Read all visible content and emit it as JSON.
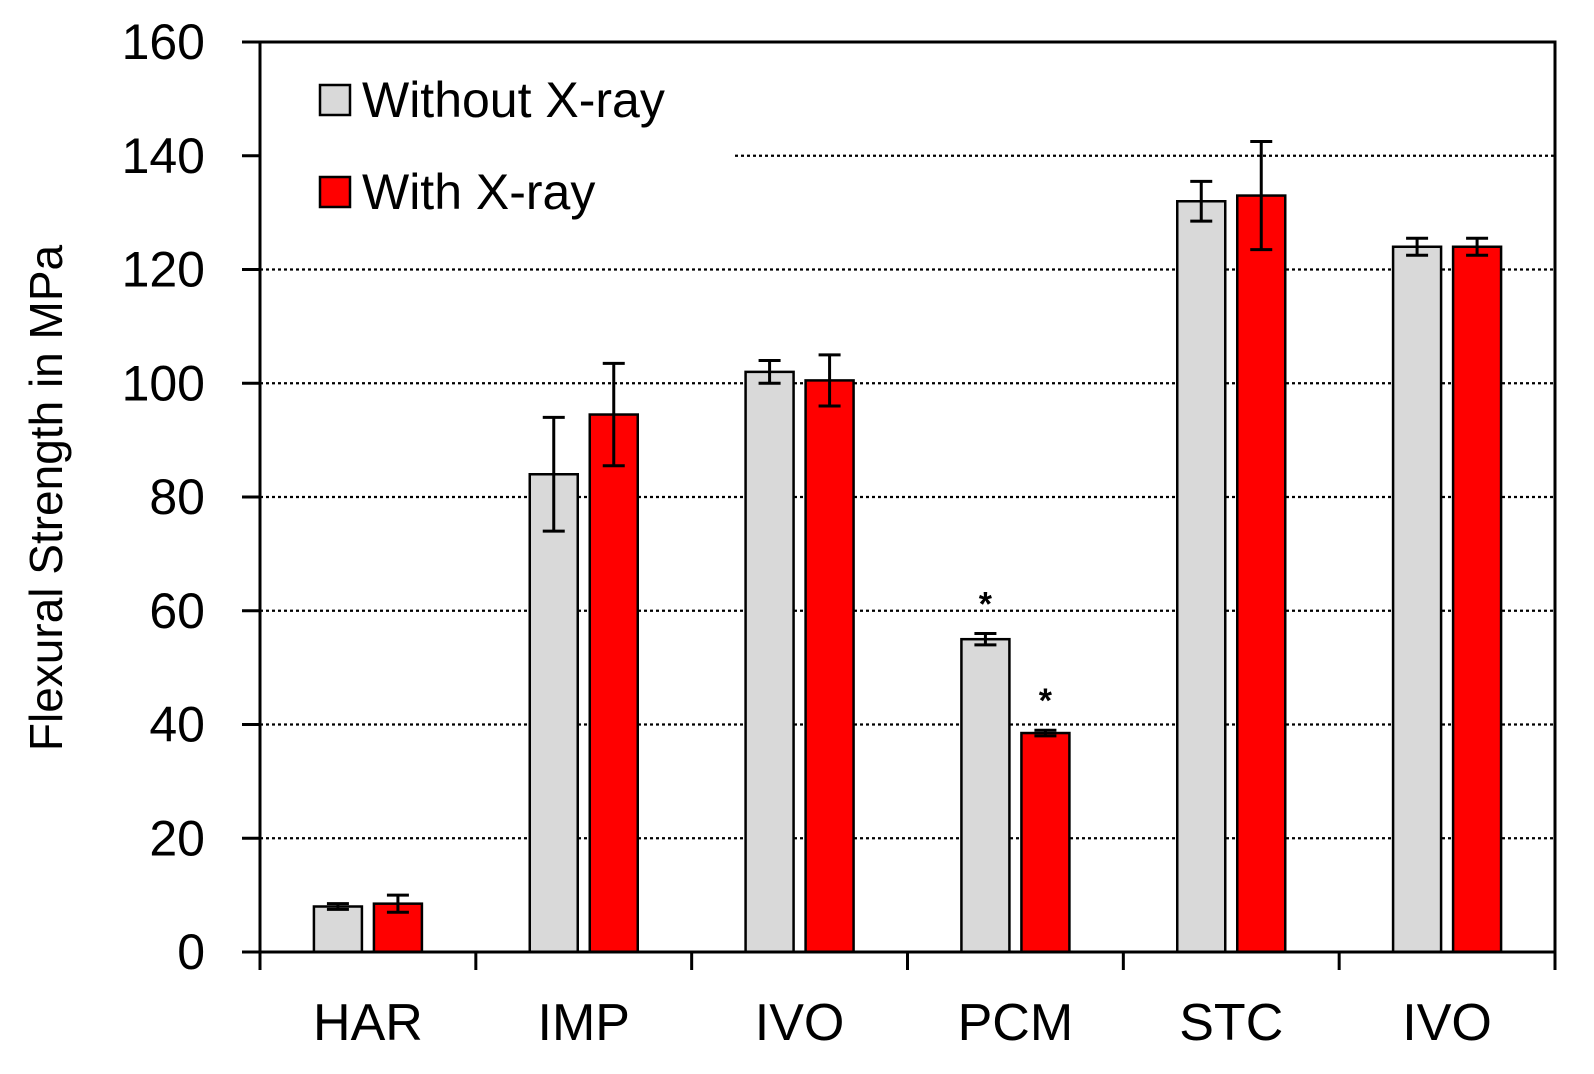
{
  "chart_data": {
    "type": "bar",
    "ylabel": "Flexural Strength in MPa",
    "ylim": [
      0,
      160
    ],
    "yticks": [
      0,
      20,
      40,
      60,
      80,
      100,
      120,
      140,
      160
    ],
    "grid": "horizontal dotted",
    "legend_position": "top-left",
    "categories": [
      "HAR",
      "IMP",
      "IVO",
      "PCM",
      "STC",
      "IVO"
    ],
    "series": [
      {
        "name": "Without X-ray",
        "color": "#d9d9d9",
        "values": [
          8,
          84,
          102,
          55,
          132,
          124
        ],
        "errors": [
          0.5,
          10,
          2,
          1,
          3.5,
          1.5
        ],
        "annotations": [
          "",
          "",
          "",
          "*",
          "",
          ""
        ]
      },
      {
        "name": "With X-ray",
        "color": "#ff0000",
        "values": [
          8.5,
          94.5,
          100.5,
          38.5,
          133,
          124
        ],
        "errors": [
          1.5,
          9,
          4.5,
          0.5,
          9.5,
          1.5
        ],
        "annotations": [
          "",
          "",
          "",
          "*",
          "",
          ""
        ]
      }
    ]
  }
}
